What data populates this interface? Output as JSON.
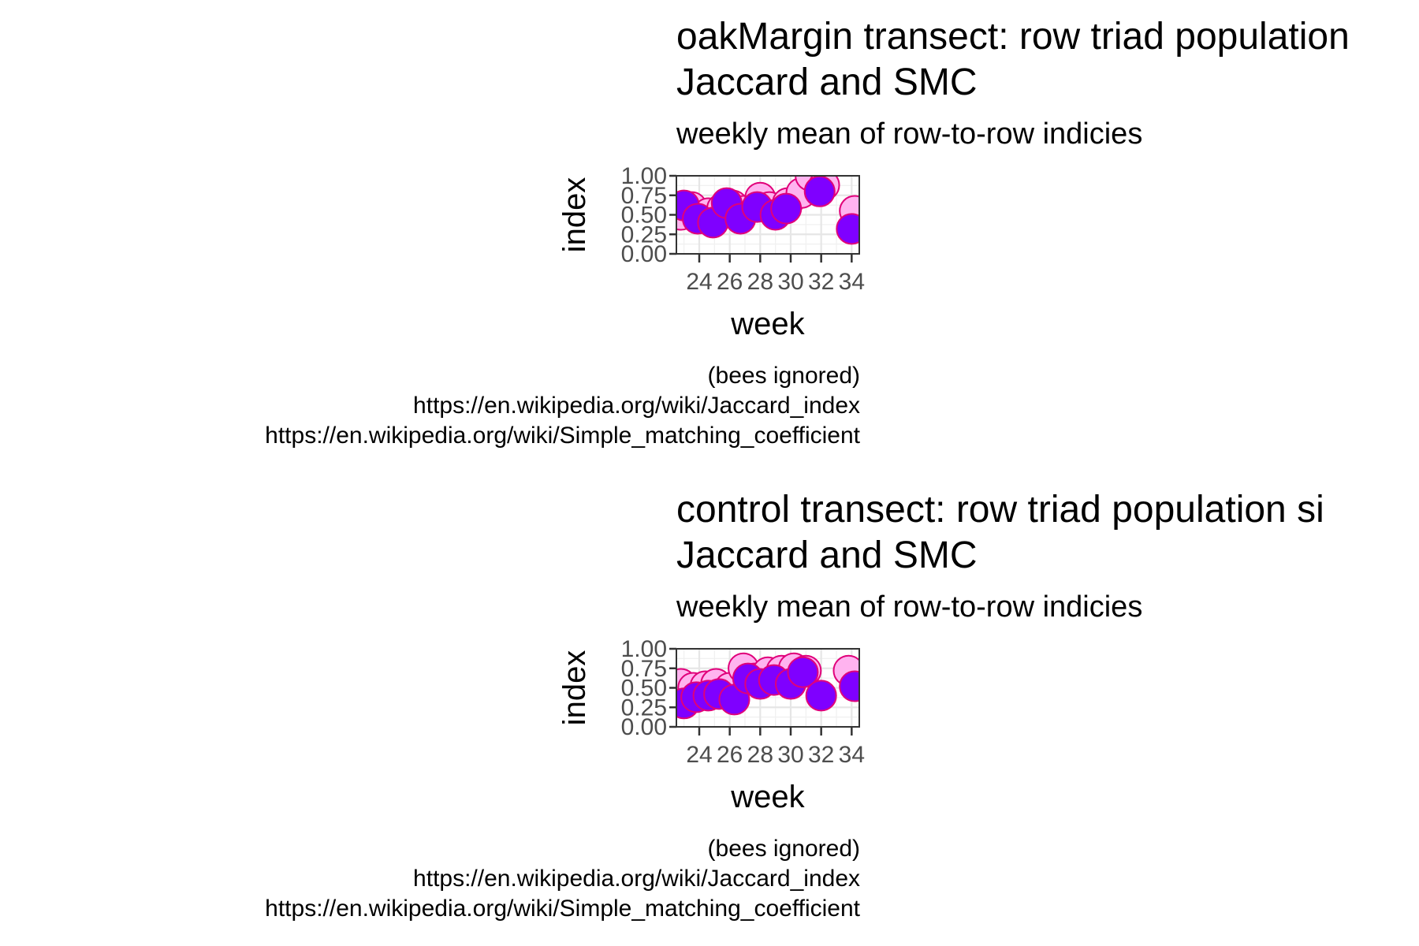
{
  "chart_data": [
    {
      "type": "scatter",
      "title_lines": [
        "oakMargin transect: row triad population",
        "Jaccard and SMC"
      ],
      "subtitle": "weekly mean of row-to-row indicies",
      "xlabel": "week",
      "ylabel": "index",
      "x_ticks": [
        24,
        26,
        28,
        30,
        32,
        34
      ],
      "xlim": [
        22.5,
        34.5
      ],
      "y_ticks": [
        "0.00",
        "0.25",
        "0.50",
        "0.75",
        "1.00"
      ],
      "ylim": [
        0,
        1
      ],
      "caption_lines": [
        "(bees ignored)",
        "https://en.wikipedia.org/wiki/Jaccard_index",
        "https://en.wikipedia.org/wiki/Simple_matching_coefficient"
      ],
      "series": [
        {
          "color": "#ffb3ef",
          "x": [
            22.8,
            23.5,
            24.6,
            25.5,
            26.2,
            26.9,
            28.0,
            28.6,
            29.8,
            30.7,
            31.3,
            32.2,
            34.2
          ],
          "y": [
            0.5,
            0.6,
            0.52,
            0.58,
            0.62,
            0.55,
            0.72,
            0.6,
            0.65,
            0.78,
            1.0,
            0.88,
            0.55
          ]
        },
        {
          "color": "#7f00ff",
          "x": [
            23.0,
            23.9,
            24.9,
            25.8,
            26.7,
            27.8,
            29.0,
            29.7,
            31.9,
            34.0
          ],
          "y": [
            0.62,
            0.45,
            0.4,
            0.65,
            0.45,
            0.6,
            0.5,
            0.58,
            0.8,
            0.32
          ]
        }
      ]
    },
    {
      "type": "scatter",
      "title_lines": [
        "control transect: row triad population si",
        "Jaccard and SMC"
      ],
      "subtitle": "weekly mean of row-to-row indicies",
      "xlabel": "week",
      "ylabel": "index",
      "x_ticks": [
        24,
        26,
        28,
        30,
        32,
        34
      ],
      "xlim": [
        22.5,
        34.5
      ],
      "y_ticks": [
        "0.00",
        "0.25",
        "0.50",
        "0.75",
        "1.00"
      ],
      "ylim": [
        0,
        1
      ],
      "caption_lines": [
        "(bees ignored)",
        "https://en.wikipedia.org/wiki/Jaccard_index",
        "https://en.wikipedia.org/wiki/Simple_matching_coefficient"
      ],
      "series": [
        {
          "color": "#ffb3ef",
          "x": [
            22.8,
            23.6,
            24.4,
            25.1,
            26.0,
            26.9,
            27.6,
            28.5,
            29.4,
            30.2,
            31.0,
            33.8
          ],
          "y": [
            0.55,
            0.5,
            0.52,
            0.55,
            0.5,
            0.75,
            0.62,
            0.7,
            0.72,
            0.75,
            0.72,
            0.72
          ]
        },
        {
          "color": "#7f00ff",
          "x": [
            23.0,
            23.8,
            24.6,
            25.3,
            26.3,
            27.2,
            28.0,
            28.9,
            30.0,
            30.8,
            32.0,
            34.2
          ],
          "y": [
            0.3,
            0.38,
            0.4,
            0.42,
            0.35,
            0.62,
            0.55,
            0.6,
            0.55,
            0.7,
            0.4,
            0.52
          ]
        }
      ]
    }
  ]
}
